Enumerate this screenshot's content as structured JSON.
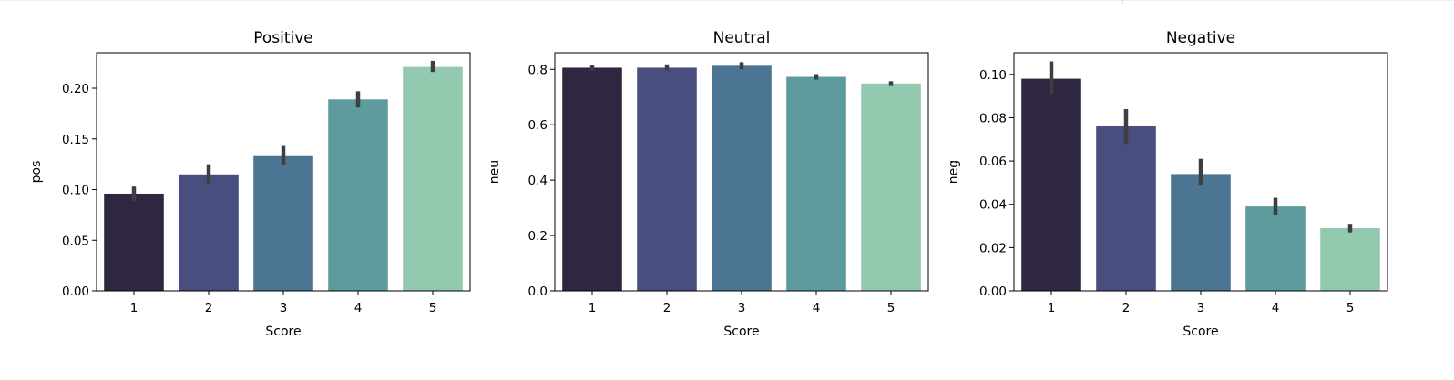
{
  "chart_data": [
    {
      "type": "bar",
      "title": "Positive",
      "xlabel": "Score",
      "ylabel": "pos",
      "categories": [
        "1",
        "2",
        "3",
        "4",
        "5"
      ],
      "values": [
        0.096,
        0.115,
        0.133,
        0.189,
        0.221
      ],
      "error": [
        [
          0.089,
          0.103
        ],
        [
          0.106,
          0.125
        ],
        [
          0.124,
          0.143
        ],
        [
          0.181,
          0.197
        ],
        [
          0.216,
          0.227
        ]
      ],
      "ylim": [
        0,
        0.235
      ],
      "yticks": [
        0.0,
        0.05,
        0.1,
        0.15,
        0.2
      ],
      "ytick_labels": [
        "0.00",
        "0.05",
        "0.10",
        "0.15",
        "0.20"
      ],
      "colors": [
        "#2f2640",
        "#484f7e",
        "#4b7592",
        "#5e9b9c",
        "#93c9ae"
      ],
      "error_color": "#3f3f3f",
      "grid": false
    },
    {
      "type": "bar",
      "title": "Neutral",
      "xlabel": "Score",
      "ylabel": "neu",
      "categories": [
        "1",
        "2",
        "3",
        "4",
        "5"
      ],
      "values": [
        0.806,
        0.806,
        0.813,
        0.773,
        0.749
      ],
      "error": [
        [
          0.796,
          0.816
        ],
        [
          0.796,
          0.818
        ],
        [
          0.8,
          0.826
        ],
        [
          0.763,
          0.783
        ],
        [
          0.74,
          0.757
        ]
      ],
      "ylim": [
        0,
        0.86
      ],
      "yticks": [
        0.0,
        0.2,
        0.4,
        0.6,
        0.8
      ],
      "ytick_labels": [
        "0.0",
        "0.2",
        "0.4",
        "0.6",
        "0.8"
      ],
      "colors": [
        "#2f2640",
        "#484f7e",
        "#4b7592",
        "#5e9b9c",
        "#93c9ae"
      ],
      "error_color": "#3f3f3f",
      "grid": false
    },
    {
      "type": "bar",
      "title": "Negative",
      "xlabel": "Score",
      "ylabel": "neg",
      "categories": [
        "1",
        "2",
        "3",
        "4",
        "5"
      ],
      "values": [
        0.098,
        0.076,
        0.054,
        0.039,
        0.029
      ],
      "error": [
        [
          0.091,
          0.106
        ],
        [
          0.068,
          0.084
        ],
        [
          0.049,
          0.061
        ],
        [
          0.035,
          0.043
        ],
        [
          0.027,
          0.031
        ]
      ],
      "ylim": [
        0,
        0.11
      ],
      "yticks": [
        0.0,
        0.02,
        0.04,
        0.06,
        0.08,
        0.1
      ],
      "ytick_labels": [
        "0.00",
        "0.02",
        "0.04",
        "0.06",
        "0.08",
        "0.10"
      ],
      "colors": [
        "#2f2640",
        "#484f7e",
        "#4b7592",
        "#5e9b9c",
        "#93c9ae"
      ],
      "error_color": "#3f3f3f",
      "grid": false
    }
  ]
}
